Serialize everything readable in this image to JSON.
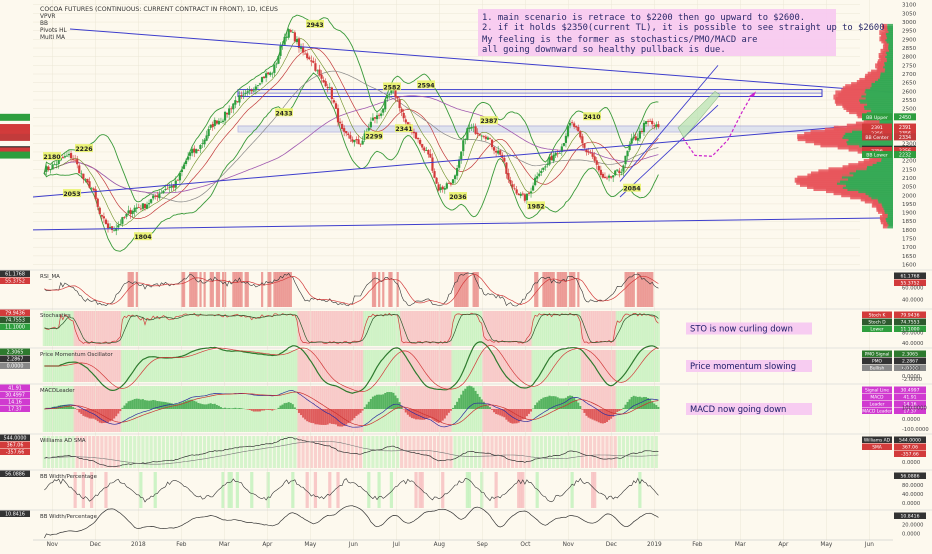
{
  "header": {
    "title": "COCOA FUTURES (CONTINUOUS: CURRENT CONTRACT IN FRONT), 1D, ICEUS",
    "indicators": [
      "VPVR",
      "BB",
      "Pivots HL",
      "Multi MA"
    ]
  },
  "annotation": {
    "lines": [
      "1. main scenario is retrace to $2200 then go upward to $2600.",
      "2. if it holds $2350(current TL), it is possible to see straight up to $2600",
      "",
      "My feeling is the former as stochastics/PMO/MACD are",
      "all going downward so healthy pullback is due."
    ]
  },
  "chart_data": [
    {
      "type": "candlestick",
      "name": "Cocoa Futures daily price",
      "x_labels": [
        "Nov",
        "Dec",
        "2018",
        "Feb",
        "Mar",
        "Apr",
        "May",
        "Jun",
        "Jul",
        "Aug",
        "Sep",
        "Oct",
        "Nov",
        "Dec",
        "2019",
        "Feb",
        "Mar",
        "Apr",
        "May",
        "Jun"
      ],
      "y_ticks": [
        1600,
        1650,
        1700,
        1750,
        1800,
        1850,
        1900,
        1950,
        2000,
        2050,
        2100,
        2150,
        2200,
        2250,
        2300,
        2350,
        2400,
        2450,
        2500,
        2550,
        2600,
        2650,
        2700,
        2750,
        2800,
        2850,
        2900,
        2950,
        3000,
        3050,
        3100
      ],
      "ylim": [
        1580,
        3110
      ],
      "pivot_labels": [
        {
          "label": "2180",
          "value": 2180
        },
        {
          "label": "2226",
          "value": 2226
        },
        {
          "label": "2053",
          "value": 2053
        },
        {
          "label": "1804",
          "value": 1804
        },
        {
          "label": "2433",
          "value": 2433
        },
        {
          "label": "2943",
          "value": 2943
        },
        {
          "label": "2582",
          "value": 2582
        },
        {
          "label": "2594",
          "value": 2594
        },
        {
          "label": "2299",
          "value": 2299
        },
        {
          "label": "2341",
          "value": 2341
        },
        {
          "label": "2387",
          "value": 2387
        },
        {
          "label": "2036",
          "value": 2036
        },
        {
          "label": "1982",
          "value": 1982
        },
        {
          "label": "2410",
          "value": 2410
        },
        {
          "label": "2084",
          "value": 2084
        }
      ],
      "right_badges": [
        {
          "label": "BB Upper",
          "value": "2450"
        },
        {
          "label": "2391",
          "value": "2391"
        },
        {
          "label": "2356",
          "value": "2356"
        },
        {
          "label": "BB Center",
          "value": "2334"
        },
        {
          "label": "2263",
          "value": "2263"
        },
        {
          "label": "2256",
          "value": "2256"
        },
        {
          "label": "BB Lower",
          "value": "2232"
        }
      ]
    },
    {
      "type": "line",
      "name": "RSI_MA",
      "left_values": [
        "61.1768",
        "55.3752"
      ],
      "right_values": [
        "61.1768",
        "55.3752"
      ],
      "y_ticks": [
        "60.0000",
        "40.0000"
      ]
    },
    {
      "type": "line",
      "name": "Stochastics",
      "left_values": [
        "79.9436",
        "74.7553",
        "11.1000"
      ],
      "right_values": [
        "79.9436",
        "74.7553",
        "11.1000"
      ],
      "y_ticks": [
        "80.0000",
        "40.0000"
      ],
      "right_legend": [
        "Stoch K",
        "Stoch D",
        "Lower"
      ]
    },
    {
      "type": "line",
      "name": "Price Momentum Oscillator",
      "left_values": [
        "2.3065",
        "2.2867",
        "0.0000"
      ],
      "right_values": [
        "2.3065",
        "2.2867",
        "0.0000"
      ],
      "y_ticks": [
        "2.0000",
        "0.0000",
        "-2.0000"
      ],
      "right_legend": [
        "PMO Signal",
        "PMO",
        "Bullish",
        "None"
      ]
    },
    {
      "type": "line",
      "name": "MACDLeader",
      "left_values": [
        "41.91",
        "30.4997",
        "14.16",
        "17.37"
      ],
      "right_values": [
        "30.4997",
        "41.91",
        "14.16",
        "17.37"
      ],
      "y_ticks": [
        "100.0000",
        "0.0000",
        "-100.0000"
      ],
      "right_legend": [
        "Signal Line",
        "MACD",
        "Leader",
        "MACD Leader"
      ]
    },
    {
      "type": "line",
      "name": "Williams AD SMA",
      "left_values": [
        "544.0000",
        "367.06",
        "-357.66"
      ],
      "right_values": [
        "544.0000",
        "367.06",
        "-357.66"
      ],
      "y_ticks": [
        "0.0000"
      ],
      "right_legend": [
        "Williams AD",
        "SMA"
      ]
    },
    {
      "type": "line",
      "name": "BB Width/Percentage",
      "left_values": [
        "56.0886"
      ],
      "right_values": [
        "56.0886"
      ],
      "y_ticks": [
        "80.0000",
        "40.0000",
        "0.0000"
      ]
    },
    {
      "type": "line",
      "name": "BB Width/Percentage",
      "left_values": [
        "10.8416"
      ],
      "right_values": [
        "10.8416"
      ],
      "y_ticks": [
        "20.0000",
        "0.0000"
      ]
    }
  ],
  "panel_notes": [
    {
      "panel": 2,
      "text": "STO is now curling down"
    },
    {
      "panel": 3,
      "text": "Price momentum slowing"
    },
    {
      "panel": 4,
      "text": "MACD now going down"
    }
  ],
  "colors": {
    "background": "#fdf9ee",
    "up": "#2e9e3e",
    "down": "#d23b3b",
    "trendline": "#3d3dcc",
    "projection": "#cc22cc",
    "note_bg": "#f7c9f0",
    "green_zone": "#c8f2c0",
    "red_zone": "#f7c3c3"
  }
}
